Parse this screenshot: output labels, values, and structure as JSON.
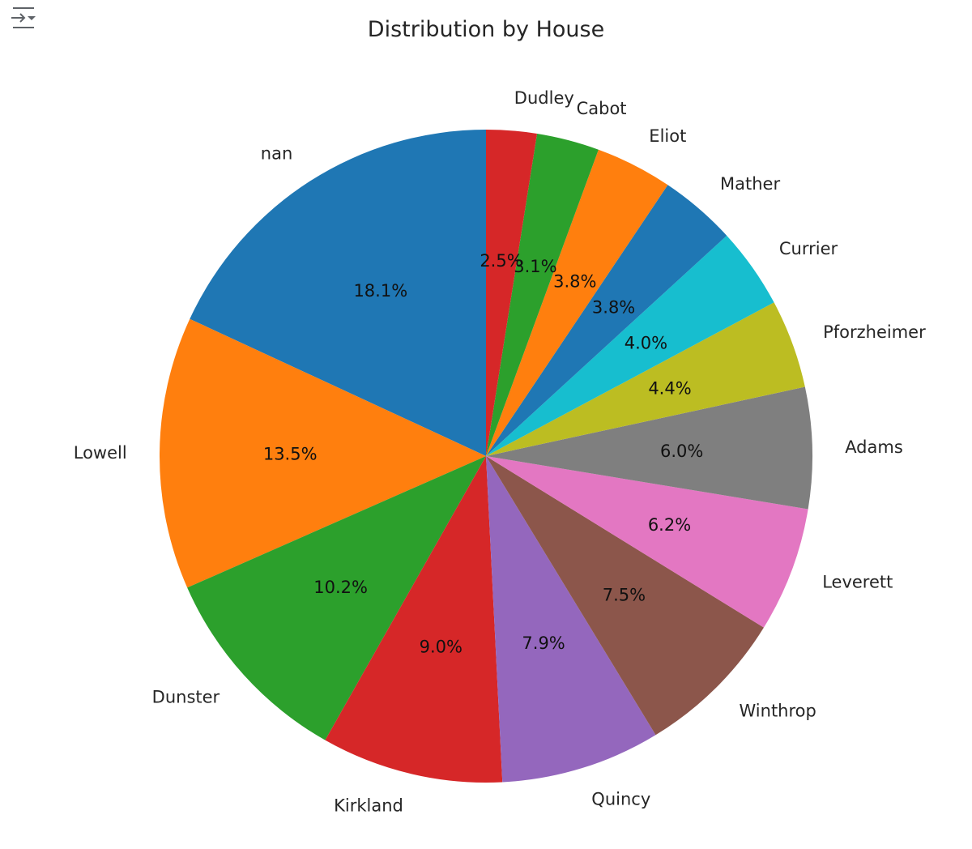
{
  "output_toggle_icon": "output-collapse-icon",
  "chart_data": {
    "type": "pie",
    "title": "Distribution by House",
    "start_angle_deg": 90,
    "direction": "counterclockwise",
    "slices": [
      {
        "label": "nan",
        "value": 18.1,
        "pct": "18.1%",
        "color": "#1f77b4"
      },
      {
        "label": "Lowell",
        "value": 13.5,
        "pct": "13.5%",
        "color": "#ff7f0e"
      },
      {
        "label": "Dunster",
        "value": 10.2,
        "pct": "10.2%",
        "color": "#2ca02c"
      },
      {
        "label": "Kirkland",
        "value": 9.0,
        "pct": "9.0%",
        "color": "#d62728"
      },
      {
        "label": "Quincy",
        "value": 7.9,
        "pct": "7.9%",
        "color": "#9467bd"
      },
      {
        "label": "Winthrop",
        "value": 7.5,
        "pct": "7.5%",
        "color": "#8c564b"
      },
      {
        "label": "Leverett",
        "value": 6.2,
        "pct": "6.2%",
        "color": "#e377c2"
      },
      {
        "label": "Adams",
        "value": 6.0,
        "pct": "6.0%",
        "color": "#7f7f7f"
      },
      {
        "label": "Pforzheimer",
        "value": 4.4,
        "pct": "4.4%",
        "color": "#bcbd22"
      },
      {
        "label": "Currier",
        "value": 4.0,
        "pct": "4.0%",
        "color": "#17becf"
      },
      {
        "label": "Mather",
        "value": 3.8,
        "pct": "3.8%",
        "color": "#1f77b4"
      },
      {
        "label": "Eliot",
        "value": 3.8,
        "pct": "3.8%",
        "color": "#ff7f0e"
      },
      {
        "label": "Cabot",
        "value": 3.1,
        "pct": "3.1%",
        "color": "#2ca02c"
      },
      {
        "label": "Dudley",
        "value": 2.5,
        "pct": "2.5%",
        "color": "#d62728"
      }
    ]
  }
}
